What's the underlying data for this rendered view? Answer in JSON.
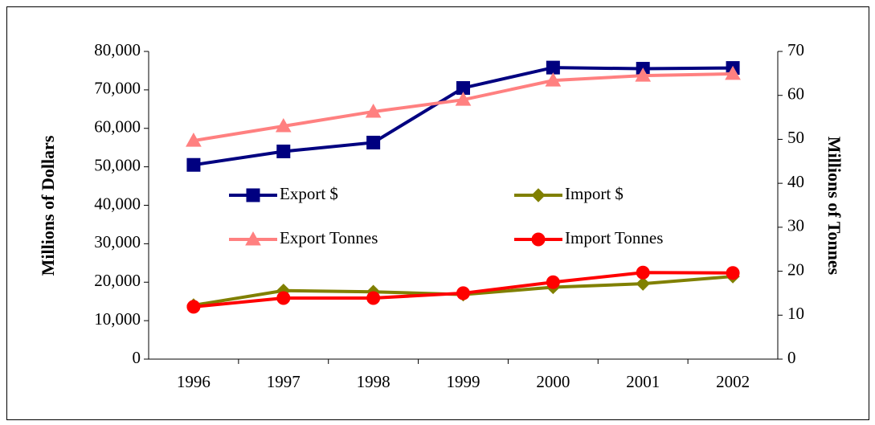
{
  "chart_data": {
    "type": "line",
    "categories": [
      "1996",
      "1997",
      "1998",
      "1999",
      "2000",
      "2001",
      "2002"
    ],
    "y_label": "Millions of Dollars",
    "y2_label": "Millions of Tonnes",
    "ylim": [
      0,
      80000
    ],
    "yticks": [
      {
        "value": 0,
        "label": "0"
      },
      {
        "value": 10000,
        "label": "10,000"
      },
      {
        "value": 20000,
        "label": "20,000"
      },
      {
        "value": 30000,
        "label": "30,000"
      },
      {
        "value": 40000,
        "label": "40,000"
      },
      {
        "value": 50000,
        "label": "50,000"
      },
      {
        "value": 60000,
        "label": "60,000"
      },
      {
        "value": 70000,
        "label": "70,000"
      },
      {
        "value": 80000,
        "label": "80,000"
      }
    ],
    "y2lim": [
      0,
      70
    ],
    "y2ticks": [
      0,
      10,
      20,
      30,
      40,
      50,
      60,
      70
    ],
    "series": [
      {
        "name": "Export $",
        "color": "#000080",
        "marker": "square",
        "values": [
          50500,
          54000,
          56300,
          70500,
          75800,
          75500,
          75700
        ]
      },
      {
        "name": "Import $",
        "color": "#808000",
        "marker": "diamond",
        "values": [
          14000,
          17800,
          17500,
          16800,
          18700,
          19600,
          21500
        ]
      },
      {
        "name": "Export Tonnes",
        "color": "#ff8080",
        "marker": "triangle",
        "axis": "y2",
        "values": [
          49.7,
          53.0,
          56.3,
          59.0,
          63.4,
          64.5,
          64.9
        ]
      },
      {
        "name": "Import Tonnes",
        "color": "#ff0000",
        "marker": "circle",
        "axis": "y2",
        "values": [
          11.9,
          13.9,
          13.9,
          15.0,
          17.5,
          19.7,
          19.6
        ]
      }
    ]
  }
}
